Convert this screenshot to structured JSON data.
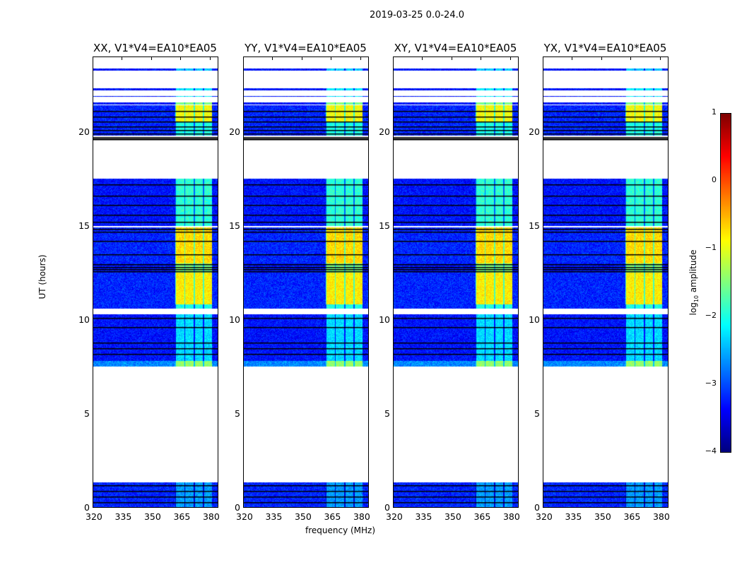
{
  "chart_data": {
    "type": "heatmap",
    "title": "2019-03-25 0.0-24.0",
    "xlabel": "frequency (MHz)",
    "ylabel": "UT (hours)",
    "xlim": [
      320,
      384
    ],
    "ylim": [
      0,
      24
    ],
    "xticks": [
      "320",
      "335",
      "350",
      "365",
      "380"
    ],
    "xtick_values": [
      320,
      335,
      350,
      365,
      380
    ],
    "yticks": [
      "0",
      "5",
      "10",
      "15",
      "20"
    ],
    "ytick_values": [
      0,
      5,
      10,
      15,
      20
    ],
    "colorbar": {
      "label": "log10 amplitude",
      "label_main": "log",
      "label_sub": "10",
      "label_rest": " amplitude",
      "range": [
        -4,
        1
      ],
      "ticks": [
        "1",
        "0",
        "−1",
        "−2",
        "−3",
        "−4"
      ],
      "tick_values": [
        1,
        0,
        -1,
        -2,
        -3,
        -4
      ],
      "colormap": "jet"
    },
    "panels": [
      {
        "title": "XX, V1*V4=EA10*EA05"
      },
      {
        "title": "YY, V1*V4=EA10*EA05"
      },
      {
        "title": "XY, V1*V4=EA10*EA05"
      },
      {
        "title": "YX, V1*V4=EA10*EA05"
      }
    ],
    "rfi_band_mhz": [
      362,
      381
    ],
    "data_bands": [
      {
        "t0": 0.0,
        "t1": 1.35,
        "base": -3.2,
        "rfi": -2.6
      },
      {
        "t0": 7.5,
        "t1": 7.8,
        "base": -2.7,
        "rfi": -1.4
      },
      {
        "t0": 7.8,
        "t1": 10.3,
        "base": -3.3,
        "rfi": -2.3
      },
      {
        "t0": 10.6,
        "t1": 10.8,
        "base": -3.2,
        "rfi": -2.0
      },
      {
        "t0": 10.8,
        "t1": 12.5,
        "base": -3.2,
        "rfi": -0.8
      },
      {
        "t0": 12.5,
        "t1": 13.0,
        "base": -3.3,
        "rfi": -1.5
      },
      {
        "t0": 13.0,
        "t1": 14.9,
        "base": -3.2,
        "rfi": -0.7
      },
      {
        "t0": 15.0,
        "t1": 17.5,
        "base": -3.3,
        "rfi": -1.9
      },
      {
        "t0": 19.8,
        "t1": 20.5,
        "base": -3.2,
        "rfi": -2.0
      },
      {
        "t0": 20.5,
        "t1": 21.4,
        "base": -3.2,
        "rfi": -0.9
      },
      {
        "t0": 21.45,
        "t1": 21.55,
        "base": -3.3,
        "rfi": -1.5
      },
      {
        "t0": 21.85,
        "t1": 21.9,
        "base": -3.3,
        "rfi": -2.2
      },
      {
        "t0": 22.2,
        "t1": 22.3,
        "base": -3.3,
        "rfi": -2.2
      },
      {
        "t0": 23.25,
        "t1": 23.35,
        "base": -3.3,
        "rfi": -2.4
      }
    ],
    "flagged_lines_hours": [
      0.3,
      0.6,
      0.9,
      1.2,
      8.2,
      8.5,
      8.8,
      9.6,
      10.1,
      12.6,
      12.7,
      12.8,
      12.95,
      13.5,
      14.2,
      14.7,
      14.85,
      15.2,
      15.6,
      16.1,
      16.6,
      17.2,
      19.6,
      19.65,
      19.7,
      19.9,
      20.1,
      20.3,
      20.55,
      20.8,
      21.1
    ]
  }
}
